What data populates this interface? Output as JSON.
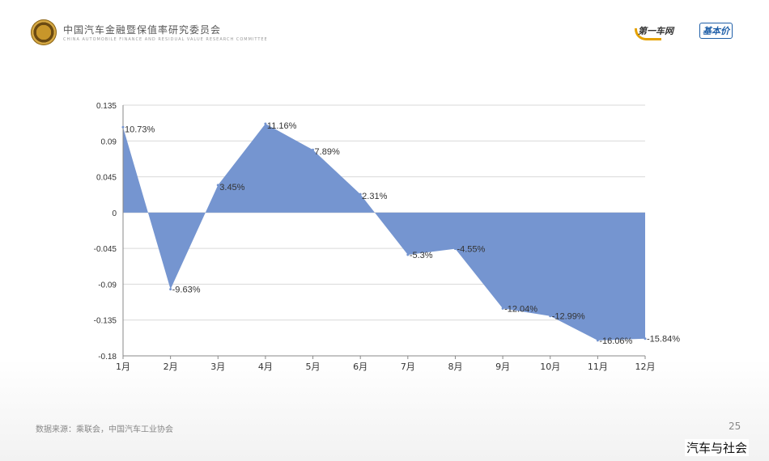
{
  "header": {
    "title": "中国汽车金融暨保值率研究委员会",
    "subtitle": "CHINA AUTOMOBILE FINANCE AND RESIDUAL VALUE RESEARCH COMMITTEE",
    "brand_1": "第一车网",
    "brand_2": "基本价"
  },
  "footer": {
    "source": "数据来源：乘联会，中国汽车工业协会",
    "page_number": "25"
  },
  "watermark": "汽车与社会",
  "colors": {
    "area_fill": "#7595d0",
    "grid": "#d9d9d9",
    "axis": "#888888",
    "label": "#333333"
  },
  "chart_data": {
    "type": "area",
    "categories": [
      "1月",
      "2月",
      "3月",
      "4月",
      "5月",
      "6月",
      "7月",
      "8月",
      "9月",
      "10月",
      "11月",
      "12月"
    ],
    "values": [
      0.1073,
      -0.0963,
      0.0345,
      0.1116,
      0.0789,
      0.0231,
      -0.053,
      -0.0455,
      -0.1204,
      -0.1299,
      -0.1606,
      -0.1584
    ],
    "data_labels": [
      "10.73%",
      "-9.63%",
      "3.45%",
      "11.16%",
      "7.89%",
      "2.31%",
      "-5.3%",
      "-4.55%",
      "-12.04%",
      "-12.99%",
      "-16.06%",
      "-15.84%"
    ],
    "y_ticks": [
      "0.135",
      "0.09",
      "0.045",
      "0",
      "-0.045",
      "-0.09",
      "-0.135",
      "-0.18"
    ],
    "ylim": [
      -0.18,
      0.135
    ],
    "grid": true,
    "title": "",
    "xlabel": "",
    "ylabel": ""
  }
}
